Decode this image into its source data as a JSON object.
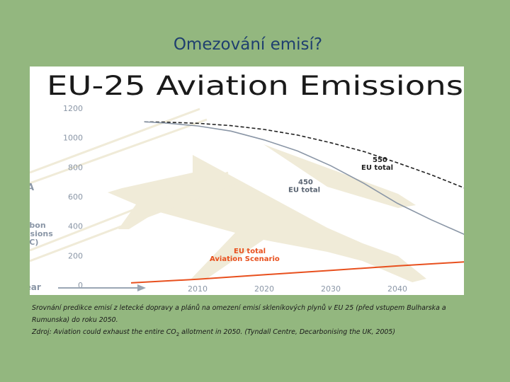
{
  "slide": {
    "title": "Omezování emisí?"
  },
  "chart_data": {
    "type": "line",
    "title": "EU-25 Aviation Emissions",
    "ylabel_fragments": [
      "rbon",
      "ssions",
      "tC)"
    ],
    "left_fragment": "A",
    "xlabel": "Year",
    "x_ticks": [
      "2010",
      "2020",
      "2030",
      "2040"
    ],
    "y_ticks": [
      "0",
      "200",
      "400",
      "600",
      "800",
      "1000",
      "1200"
    ],
    "xlim": [
      2000,
      2050
    ],
    "ylim": [
      0,
      1200
    ],
    "grid": false,
    "series": [
      {
        "label_lines": [
          "550",
          "EU total"
        ],
        "color": "#222222",
        "points": [
          [
            2002,
            1108
          ],
          [
            2005,
            1106
          ],
          [
            2010,
            1098
          ],
          [
            2015,
            1082
          ],
          [
            2020,
            1056
          ],
          [
            2025,
            1018
          ],
          [
            2030,
            966
          ],
          [
            2035,
            906
          ],
          [
            2040,
            830
          ],
          [
            2045,
            750
          ],
          [
            2050,
            660
          ],
          [
            2052,
            625
          ]
        ]
      },
      {
        "label_lines": [
          "450",
          "EU total"
        ],
        "color": "#8a96a6",
        "points": [
          [
            2002,
            1108
          ],
          [
            2005,
            1100
          ],
          [
            2010,
            1080
          ],
          [
            2015,
            1045
          ],
          [
            2020,
            985
          ],
          [
            2025,
            910
          ],
          [
            2030,
            810
          ],
          [
            2035,
            690
          ],
          [
            2040,
            555
          ],
          [
            2045,
            445
          ],
          [
            2050,
            345
          ],
          [
            2052,
            310
          ]
        ]
      },
      {
        "label_lines": [
          "EU total",
          "Aviation Scenario"
        ],
        "color": "#e8501e",
        "points": [
          [
            2000,
            15
          ],
          [
            2010,
            40
          ],
          [
            2020,
            70
          ],
          [
            2030,
            100
          ],
          [
            2040,
            130
          ],
          [
            2050,
            157
          ],
          [
            2052,
            162
          ]
        ]
      }
    ]
  },
  "caption": {
    "line1": "Srovnání predikce emisí z letecké dopravy a plánů na omezení emisí skleníkových plynů v EU 25 (před vstupem Bulharska a Rumunska) do roku 2050.",
    "line2_before": "Zdroj: Aviation could exhaust the entire CO",
    "line2_sub": "2",
    "line2_after": " allotment in 2050. (Tyndall Centre, Decarbonising the UK, 2005)"
  }
}
